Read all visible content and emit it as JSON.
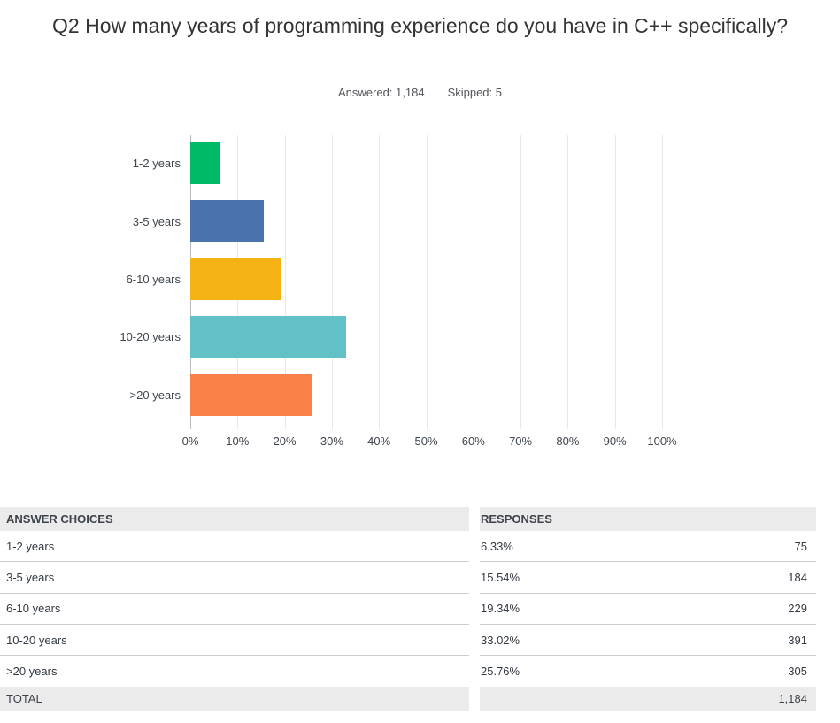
{
  "page": {
    "title": "Q2 How many years of programming experience do you have in C++ specifically?",
    "answered_label": "Answered: 1,184",
    "skipped_label": "Skipped: 5"
  },
  "chart_data": {
    "type": "bar",
    "orientation": "horizontal",
    "title": "Q2 How many years of programming experience do you have in C++ specifically?",
    "categories": [
      "1-2 years",
      "3-5 years",
      "6-10 years",
      "10-20 years",
      ">20 years"
    ],
    "values": [
      6.33,
      15.54,
      19.34,
      33.02,
      25.76
    ],
    "counts": [
      75,
      184,
      229,
      391,
      305
    ],
    "bar_colors": [
      "#00BA67",
      "#4A73AE",
      "#F5B214",
      "#61C1C7",
      "#FA8148"
    ],
    "x_ticks": [
      "0%",
      "10%",
      "20%",
      "30%",
      "40%",
      "50%",
      "60%",
      "70%",
      "80%",
      "90%",
      "100%"
    ],
    "xlim": [
      0,
      100
    ],
    "grid": true,
    "legend": "none"
  },
  "table": {
    "headers": [
      "ANSWER CHOICES",
      "RESPONSES"
    ],
    "rows": [
      {
        "choice": "1-2 years",
        "percent": "6.33%",
        "count": "75"
      },
      {
        "choice": "3-5 years",
        "percent": "15.54%",
        "count": "184"
      },
      {
        "choice": "6-10 years",
        "percent": "19.34%",
        "count": "229"
      },
      {
        "choice": "10-20 years",
        "percent": "33.02%",
        "count": "391"
      },
      {
        "choice": ">20 years",
        "percent": "25.76%",
        "count": "305"
      }
    ],
    "total_label": "TOTAL",
    "total_value": "1,184"
  },
  "colors": {
    "grid_line": "#e8e8e8",
    "axis_line": "#b9bdc1",
    "table_header_bg": "#ebebeb",
    "row_border": "#cccccc",
    "title_text": "#333333",
    "subtitle_text": "#54565b"
  }
}
